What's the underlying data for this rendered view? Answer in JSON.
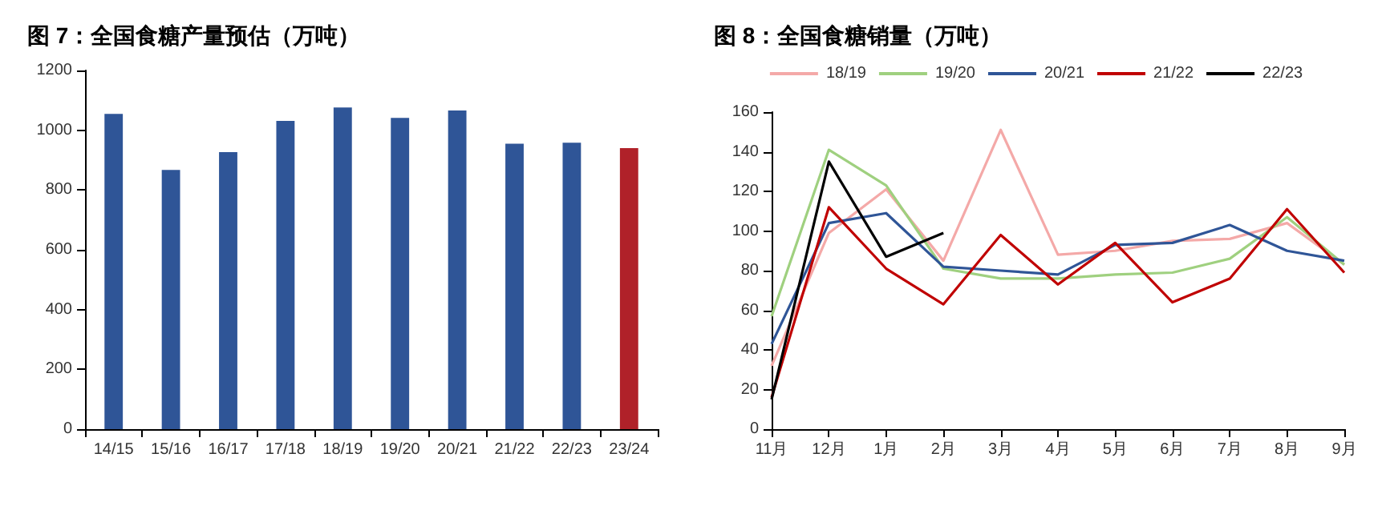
{
  "chart_data": [
    {
      "type": "bar",
      "title": "图 7：全国食糖产量预估（万吨）",
      "categories": [
        "14/15",
        "15/16",
        "16/17",
        "17/18",
        "18/19",
        "19/20",
        "20/21",
        "21/22",
        "22/23",
        "23/24"
      ],
      "values": [
        1055,
        867,
        927,
        1031,
        1076,
        1041,
        1066,
        955,
        958,
        940
      ],
      "colors": [
        "#2f5597",
        "#2f5597",
        "#2f5597",
        "#2f5597",
        "#2f5597",
        "#2f5597",
        "#2f5597",
        "#2f5597",
        "#2f5597",
        "#b02129"
      ],
      "ylim": [
        0,
        1200
      ],
      "yticks": [
        0,
        200,
        400,
        600,
        800,
        1000,
        1200
      ],
      "grid": false,
      "legend": false
    },
    {
      "type": "line",
      "title": "图 8：全国食糖销量（万吨）",
      "categories": [
        "11月",
        "12月",
        "1月",
        "2月",
        "3月",
        "4月",
        "5月",
        "6月",
        "7月",
        "8月",
        "9月"
      ],
      "series": [
        {
          "name": "18/19",
          "color": "#f4a9a8",
          "values": [
            32,
            99,
            121,
            85,
            151,
            88,
            90,
            95,
            96,
            104,
            83
          ]
        },
        {
          "name": "19/20",
          "color": "#9fd07f",
          "values": [
            57,
            141,
            123,
            81,
            76,
            76,
            78,
            79,
            86,
            107,
            83
          ]
        },
        {
          "name": "20/21",
          "color": "#2f5597",
          "values": [
            43,
            104,
            109,
            82,
            80,
            78,
            93,
            94,
            103,
            90,
            85
          ]
        },
        {
          "name": "21/22",
          "color": "#c00000",
          "values": [
            16,
            112,
            81,
            63,
            98,
            73,
            94,
            64,
            76,
            111,
            79
          ]
        },
        {
          "name": "22/23",
          "color": "#000000",
          "values": [
            15,
            135,
            87,
            99,
            null,
            null,
            null,
            null,
            null,
            null,
            null
          ]
        }
      ],
      "ylim": [
        0,
        160
      ],
      "yticks": [
        0,
        20,
        40,
        60,
        80,
        100,
        120,
        140,
        160
      ],
      "grid": false,
      "legend": "top",
      "marker": "none",
      "line_style": "solid"
    }
  ]
}
